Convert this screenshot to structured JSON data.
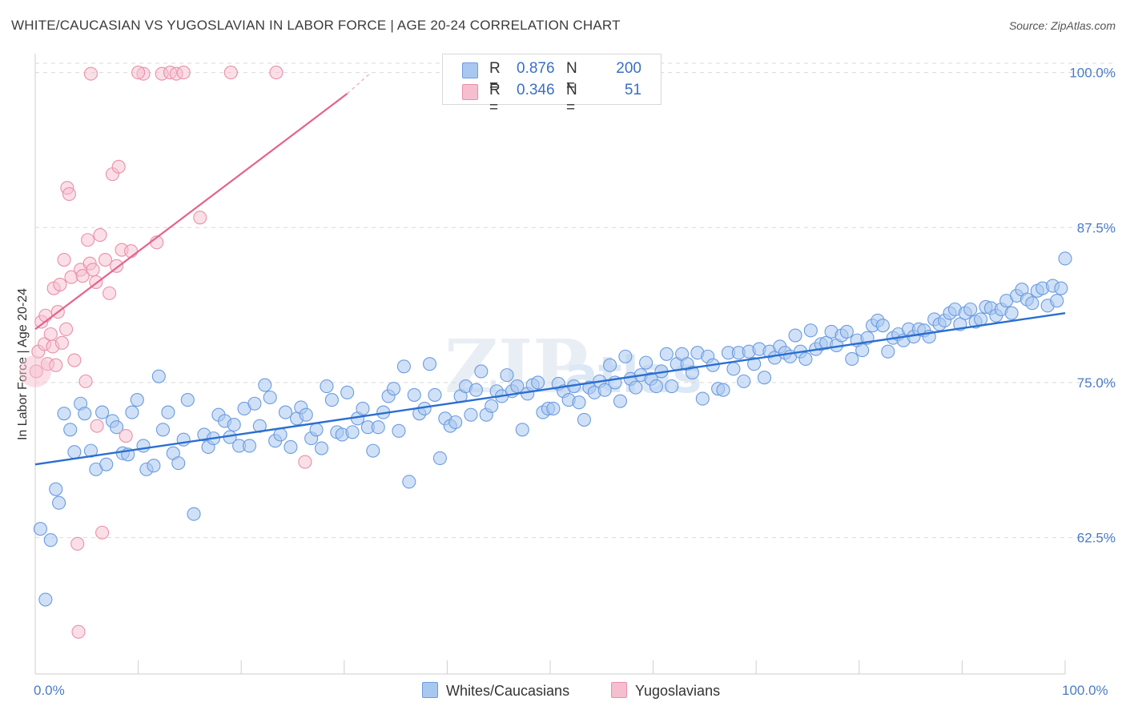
{
  "header": {
    "title": "WHITE/CAUCASIAN VS YUGOSLAVIAN IN LABOR FORCE | AGE 20-24 CORRELATION CHART",
    "source": "Source: ZipAtlas.com"
  },
  "legend": {
    "rows": [
      {
        "r_label": "R =",
        "r_value": "0.876",
        "n_label": "N =",
        "n_value": "200"
      },
      {
        "r_label": "R =",
        "r_value": "0.346",
        "n_label": "N =",
        "n_value": "51"
      }
    ]
  },
  "bottom_legend": [
    "Whites/Caucasians",
    "Yugoslavians"
  ],
  "colors": {
    "blue_fill": "#a9c8f0",
    "blue_stroke": "#6b9be0",
    "blue_line": "#2a6ed1",
    "pink_fill": "#f6bfd0",
    "pink_stroke": "#ea8fab",
    "pink_line": "#e5628c",
    "tick_text": "#4a7bc8",
    "grid": "#d9d9d9"
  },
  "chart_data": {
    "type": "scatter",
    "title": "WHITE/CAUCASIAN VS YUGOSLAVIAN IN LABOR FORCE | AGE 20-24 CORRELATION CHART",
    "ylabel": "In Labor Force | Age 20-24",
    "xlabel": "",
    "x_tick_labels": [
      "0.0%",
      "100.0%"
    ],
    "y_tick_labels": [
      "100.0%",
      "87.5%",
      "75.0%",
      "62.5%"
    ],
    "y_ticks": [
      100,
      87.5,
      75,
      62.5
    ],
    "xlim": [
      0,
      100
    ],
    "ylim": [
      51.5,
      101.2
    ],
    "grid": true,
    "legend_position": "top-center",
    "series": [
      {
        "name": "Whites/Caucasians",
        "R": 0.876,
        "N": 200,
        "trend": {
          "x": [
            0,
            100
          ],
          "y": [
            68.4,
            80.6
          ]
        },
        "points": [
          [
            0.5,
            63.2
          ],
          [
            1,
            57.5
          ],
          [
            1.5,
            62.3
          ],
          [
            2,
            66.4
          ],
          [
            2.3,
            65.3
          ],
          [
            2.8,
            72.5
          ],
          [
            3.4,
            71.2
          ],
          [
            3.8,
            69.4
          ],
          [
            4.4,
            73.3
          ],
          [
            4.8,
            72.5
          ],
          [
            5.4,
            69.5
          ],
          [
            5.9,
            68.0
          ],
          [
            6.5,
            72.6
          ],
          [
            6.9,
            68.4
          ],
          [
            7.5,
            71.9
          ],
          [
            7.9,
            71.4
          ],
          [
            8.5,
            69.3
          ],
          [
            9.0,
            69.2
          ],
          [
            9.4,
            72.6
          ],
          [
            9.9,
            73.6
          ],
          [
            10.5,
            69.9
          ],
          [
            10.8,
            68.0
          ],
          [
            11.5,
            68.3
          ],
          [
            12.0,
            75.5
          ],
          [
            12.4,
            71.2
          ],
          [
            12.9,
            72.6
          ],
          [
            13.4,
            69.3
          ],
          [
            13.9,
            68.5
          ],
          [
            14.4,
            70.4
          ],
          [
            14.8,
            73.6
          ],
          [
            15.4,
            64.4
          ],
          [
            16.4,
            70.8
          ],
          [
            16.8,
            69.8
          ],
          [
            17.3,
            70.5
          ],
          [
            17.8,
            72.4
          ],
          [
            18.4,
            71.9
          ],
          [
            18.9,
            70.6
          ],
          [
            19.3,
            71.6
          ],
          [
            19.8,
            69.9
          ],
          [
            20.3,
            72.9
          ],
          [
            20.8,
            69.9
          ],
          [
            21.3,
            73.3
          ],
          [
            21.8,
            71.5
          ],
          [
            22.3,
            74.8
          ],
          [
            22.8,
            73.8
          ],
          [
            23.3,
            70.3
          ],
          [
            23.8,
            70.8
          ],
          [
            24.3,
            72.6
          ],
          [
            24.8,
            69.8
          ],
          [
            25.4,
            72.1
          ],
          [
            25.8,
            73.0
          ],
          [
            26.3,
            72.4
          ],
          [
            26.8,
            70.5
          ],
          [
            27.3,
            71.2
          ],
          [
            27.8,
            69.7
          ],
          [
            28.3,
            74.7
          ],
          [
            28.8,
            73.6
          ],
          [
            29.3,
            71.0
          ],
          [
            29.8,
            70.8
          ],
          [
            30.3,
            74.2
          ],
          [
            30.8,
            71.0
          ],
          [
            31.3,
            72.1
          ],
          [
            31.8,
            72.9
          ],
          [
            32.3,
            71.4
          ],
          [
            32.8,
            69.5
          ],
          [
            33.3,
            71.4
          ],
          [
            33.8,
            72.6
          ],
          [
            34.3,
            73.9
          ],
          [
            34.8,
            74.5
          ],
          [
            35.3,
            71.1
          ],
          [
            35.8,
            76.3
          ],
          [
            36.3,
            67.0
          ],
          [
            36.8,
            74.0
          ],
          [
            37.3,
            72.5
          ],
          [
            37.8,
            72.9
          ],
          [
            38.3,
            76.5
          ],
          [
            38.8,
            74.0
          ],
          [
            39.3,
            68.9
          ],
          [
            39.8,
            72.1
          ],
          [
            40.3,
            71.5
          ],
          [
            40.8,
            71.8
          ],
          [
            41.3,
            73.9
          ],
          [
            41.8,
            74.7
          ],
          [
            42.3,
            72.4
          ],
          [
            42.8,
            74.4
          ],
          [
            43.3,
            75.9
          ],
          [
            43.8,
            72.4
          ],
          [
            44.3,
            73.1
          ],
          [
            44.8,
            74.3
          ],
          [
            45.3,
            73.9
          ],
          [
            45.8,
            75.6
          ],
          [
            46.3,
            74.3
          ],
          [
            46.8,
            74.7
          ],
          [
            47.3,
            71.2
          ],
          [
            47.8,
            74.1
          ],
          [
            48.3,
            74.8
          ],
          [
            48.8,
            75.0
          ],
          [
            49.3,
            72.6
          ],
          [
            49.8,
            72.9
          ],
          [
            50.3,
            72.9
          ],
          [
            50.8,
            74.9
          ],
          [
            51.3,
            74.3
          ],
          [
            51.8,
            73.6
          ],
          [
            52.3,
            74.7
          ],
          [
            52.8,
            73.4
          ],
          [
            53.3,
            72.0
          ],
          [
            53.8,
            74.6
          ],
          [
            54.3,
            74.2
          ],
          [
            54.8,
            75.1
          ],
          [
            55.3,
            74.4
          ],
          [
            55.8,
            76.4
          ],
          [
            56.3,
            75.0
          ],
          [
            56.8,
            73.5
          ],
          [
            57.3,
            77.1
          ],
          [
            57.8,
            75.3
          ],
          [
            58.3,
            74.6
          ],
          [
            58.8,
            75.6
          ],
          [
            59.3,
            76.6
          ],
          [
            59.8,
            75.3
          ],
          [
            60.3,
            74.7
          ],
          [
            60.8,
            75.9
          ],
          [
            61.3,
            77.3
          ],
          [
            61.8,
            74.7
          ],
          [
            62.3,
            76.5
          ],
          [
            62.8,
            77.3
          ],
          [
            63.3,
            76.5
          ],
          [
            63.8,
            75.8
          ],
          [
            64.3,
            77.4
          ],
          [
            64.8,
            73.7
          ],
          [
            65.3,
            77.1
          ],
          [
            65.8,
            76.4
          ],
          [
            66.3,
            74.5
          ],
          [
            66.8,
            74.4
          ],
          [
            67.3,
            77.4
          ],
          [
            67.8,
            76.1
          ],
          [
            68.3,
            77.4
          ],
          [
            68.8,
            75.1
          ],
          [
            69.3,
            77.5
          ],
          [
            69.8,
            76.5
          ],
          [
            70.3,
            77.7
          ],
          [
            70.8,
            75.4
          ],
          [
            71.3,
            77.5
          ],
          [
            71.8,
            77.0
          ],
          [
            72.3,
            77.9
          ],
          [
            72.8,
            77.4
          ],
          [
            73.3,
            77.1
          ],
          [
            73.8,
            78.8
          ],
          [
            74.3,
            77.5
          ],
          [
            74.8,
            76.9
          ],
          [
            75.3,
            79.2
          ],
          [
            75.8,
            77.7
          ],
          [
            76.3,
            78.1
          ],
          [
            76.8,
            78.2
          ],
          [
            77.3,
            79.1
          ],
          [
            77.8,
            78.0
          ],
          [
            78.3,
            78.8
          ],
          [
            78.8,
            79.1
          ],
          [
            79.3,
            76.9
          ],
          [
            79.8,
            78.4
          ],
          [
            80.3,
            77.6
          ],
          [
            80.8,
            78.6
          ],
          [
            81.3,
            79.6
          ],
          [
            81.8,
            80.0
          ],
          [
            82.3,
            79.6
          ],
          [
            82.8,
            77.5
          ],
          [
            83.3,
            78.6
          ],
          [
            83.8,
            78.9
          ],
          [
            84.3,
            78.4
          ],
          [
            84.8,
            79.3
          ],
          [
            85.3,
            78.7
          ],
          [
            85.8,
            79.3
          ],
          [
            86.3,
            79.2
          ],
          [
            86.8,
            78.7
          ],
          [
            87.3,
            80.1
          ],
          [
            87.8,
            79.7
          ],
          [
            88.3,
            80.0
          ],
          [
            88.8,
            80.6
          ],
          [
            89.3,
            80.9
          ],
          [
            89.8,
            79.7
          ],
          [
            90.3,
            80.6
          ],
          [
            90.8,
            80.9
          ],
          [
            91.3,
            79.9
          ],
          [
            91.8,
            80.1
          ],
          [
            92.3,
            81.1
          ],
          [
            92.8,
            81.0
          ],
          [
            93.3,
            80.4
          ],
          [
            93.8,
            80.9
          ],
          [
            94.3,
            81.6
          ],
          [
            94.8,
            80.6
          ],
          [
            95.3,
            82.0
          ],
          [
            95.8,
            82.5
          ],
          [
            96.3,
            81.7
          ],
          [
            96.8,
            81.4
          ],
          [
            97.3,
            82.4
          ],
          [
            97.8,
            82.6
          ],
          [
            98.3,
            81.2
          ],
          [
            98.8,
            82.8
          ],
          [
            99.2,
            81.6
          ],
          [
            99.6,
            82.6
          ],
          [
            100.0,
            85.0
          ]
        ]
      },
      {
        "name": "Yugoslavians",
        "R": 0.346,
        "N": 51,
        "trend": {
          "x": [
            0,
            30.3
          ],
          "y": [
            79.3,
            98.3
          ]
        },
        "trend_dashed": {
          "x": [
            30.3,
            32.6
          ],
          "y": [
            98.3,
            100.0
          ]
        },
        "points": [
          [
            0.1,
            75.9
          ],
          [
            0.3,
            77.5
          ],
          [
            0.6,
            79.9
          ],
          [
            0.9,
            78.1
          ],
          [
            1.0,
            80.4
          ],
          [
            1.2,
            76.5
          ],
          [
            1.5,
            78.9
          ],
          [
            1.7,
            77.9
          ],
          [
            1.8,
            82.6
          ],
          [
            2.0,
            76.4
          ],
          [
            2.2,
            80.7
          ],
          [
            2.4,
            82.9
          ],
          [
            2.6,
            78.2
          ],
          [
            2.8,
            84.9
          ],
          [
            3.0,
            79.3
          ],
          [
            3.1,
            90.7
          ],
          [
            3.3,
            90.2
          ],
          [
            3.5,
            83.5
          ],
          [
            3.8,
            76.8
          ],
          [
            4.1,
            62.0
          ],
          [
            4.2,
            54.9
          ],
          [
            4.4,
            84.1
          ],
          [
            4.6,
            83.6
          ],
          [
            4.9,
            75.1
          ],
          [
            5.1,
            86.5
          ],
          [
            5.3,
            84.6
          ],
          [
            5.6,
            84.1
          ],
          [
            5.9,
            83.1
          ],
          [
            6.0,
            71.5
          ],
          [
            6.3,
            86.9
          ],
          [
            6.5,
            62.9
          ],
          [
            6.8,
            84.9
          ],
          [
            7.2,
            82.2
          ],
          [
            7.5,
            91.8
          ],
          [
            7.9,
            84.4
          ],
          [
            8.1,
            92.4
          ],
          [
            8.4,
            85.7
          ],
          [
            8.8,
            70.7
          ],
          [
            9.3,
            85.6
          ],
          [
            10.5,
            99.9
          ],
          [
            11.8,
            86.3
          ],
          [
            12.3,
            99.9
          ],
          [
            13.1,
            100.0
          ],
          [
            16.0,
            88.3
          ],
          [
            19.0,
            100.0
          ],
          [
            5.4,
            99.9
          ],
          [
            10.0,
            100.0
          ],
          [
            13.7,
            99.9
          ],
          [
            14.4,
            100.0
          ],
          [
            23.4,
            100.0
          ],
          [
            26.2,
            68.6
          ]
        ]
      }
    ]
  }
}
